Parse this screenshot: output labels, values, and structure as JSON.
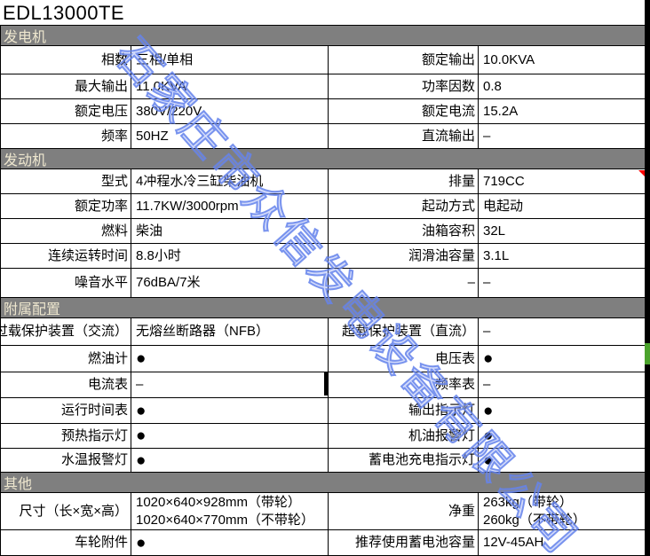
{
  "title": "EDL13000TE",
  "watermark": {
    "text": "石家庄市众信发电设备有限公司",
    "color": "#6e8aee"
  },
  "colors": {
    "section_bar_gray": "#7f7f7f",
    "section_bar_text": "#eee7cf",
    "comment_marker_red": "#ff0000",
    "selection_marker_green": "#4ba32c",
    "right_band_black": "#000000"
  },
  "sections": [
    {
      "header": "发电机",
      "rows": [
        {
          "l1": "相数",
          "v1": "三相/单相",
          "l2": "额定输出",
          "v2": "10.0KVA"
        },
        {
          "l1": "最大输出",
          "v1": "11.0KVA",
          "l2": "功率因数",
          "v2": "0.8"
        },
        {
          "l1": "额定电压",
          "v1": "380V/220V",
          "l2": "额定电流",
          "v2": "15.2A"
        },
        {
          "l1": "频率",
          "v1": "50HZ",
          "l2": "直流输出",
          "v2": "–"
        }
      ]
    },
    {
      "header": "发动机",
      "rows": [
        {
          "l1": "型式",
          "v1": "4冲程水冷三缸柴油机",
          "l2": "排量",
          "v2": "719CC"
        },
        {
          "l1": "额定功率",
          "v1": "11.7KW/3000rpm",
          "l2": "起动方式",
          "v2": "电起动"
        },
        {
          "l1": "燃料",
          "v1": "柴油",
          "l2": "油箱容积",
          "v2": "32L"
        },
        {
          "l1": "连续运转时间",
          "v1": "8.8小时",
          "l2": "润滑油容量",
          "v2": "3.1L"
        },
        {
          "l1": "噪音水平",
          "v1": "76dBA/7米",
          "l2": "–",
          "v2": "–"
        }
      ]
    },
    {
      "header": "附属配置",
      "rows": [
        {
          "l1": "过载保护装置（交流）",
          "v1": "无熔丝断路器（NFB）",
          "l2": "超载保护装置（直流）",
          "v2": "–"
        },
        {
          "l1": "燃油计",
          "v1": "●",
          "l2": "电压表",
          "v2": "●"
        },
        {
          "l1": "电流表",
          "v1": "–",
          "l2": "频率表",
          "v2": "–"
        },
        {
          "l1": "运行时间表",
          "v1": "●",
          "l2": "输出指示灯",
          "v2": "●"
        },
        {
          "l1": "预热指示灯",
          "v1": "●",
          "l2": "机油报警灯",
          "v2": "●"
        },
        {
          "l1": "水温报警灯",
          "v1": "●",
          "l2": "蓄电池充电指示灯",
          "v2": "●"
        }
      ]
    },
    {
      "header": "其他",
      "rows": [
        {
          "l1": "尺寸（长×宽×高）",
          "v1": "1020×640×928mm（带轮）\n1020×640×770mm（不带轮）",
          "l2": "净重",
          "v2": "263kg（带轮）\n260kg（不带轮）"
        },
        {
          "l1": "车轮附件",
          "v1": "●",
          "l2": "推荐使用蓄电池容量",
          "v2": "12V-45AH"
        }
      ]
    }
  ]
}
